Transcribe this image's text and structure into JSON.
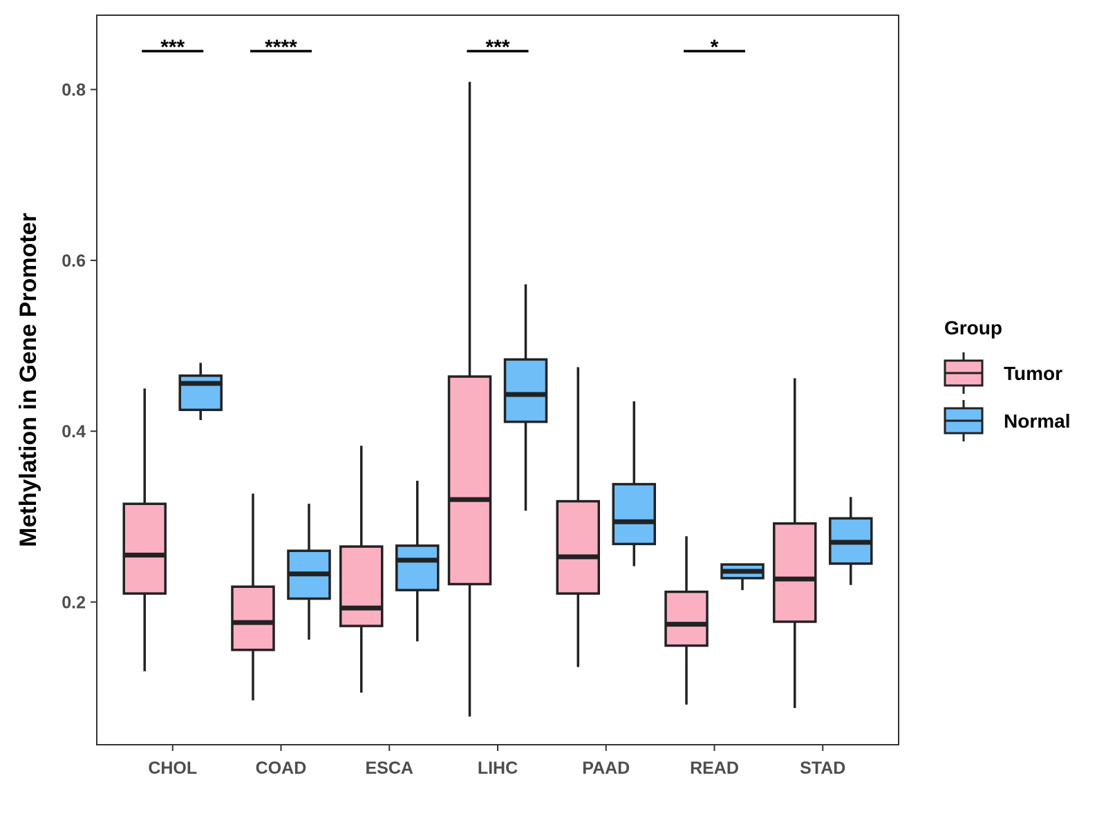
{
  "chart_data": {
    "type": "boxplot",
    "title": "",
    "xlabel": "",
    "ylabel": "Methylation in Gene Promoter",
    "ylim": [
      0.033,
      0.887
    ],
    "yticks": [
      0.2,
      0.4,
      0.6,
      0.8
    ],
    "ytick_labels": [
      "0.2",
      "0.4",
      "0.6",
      "0.8"
    ],
    "grid": false,
    "categories": [
      "CHOL",
      "COAD",
      "ESCA",
      "LIHC",
      "PAAD",
      "READ",
      "STAD"
    ],
    "legend": {
      "title": "Group",
      "position": "right",
      "entries": [
        "Tumor",
        "Normal"
      ]
    },
    "series": [
      {
        "name": "Tumor",
        "color": "#fbb0c2",
        "boxes": [
          {
            "whisker_low": 0.119,
            "q1": 0.21,
            "median": 0.255,
            "q3": 0.315,
            "whisker_high": 0.45
          },
          {
            "whisker_low": 0.085,
            "q1": 0.144,
            "median": 0.176,
            "q3": 0.218,
            "whisker_high": 0.327
          },
          {
            "whisker_low": 0.094,
            "q1": 0.172,
            "median": 0.193,
            "q3": 0.265,
            "whisker_high": 0.383
          },
          {
            "whisker_low": 0.066,
            "q1": 0.221,
            "median": 0.32,
            "q3": 0.464,
            "whisker_high": 0.809
          },
          {
            "whisker_low": 0.124,
            "q1": 0.21,
            "median": 0.253,
            "q3": 0.318,
            "whisker_high": 0.475
          },
          {
            "whisker_low": 0.08,
            "q1": 0.149,
            "median": 0.174,
            "q3": 0.212,
            "whisker_high": 0.277
          },
          {
            "whisker_low": 0.076,
            "q1": 0.177,
            "median": 0.227,
            "q3": 0.292,
            "whisker_high": 0.462
          }
        ]
      },
      {
        "name": "Normal",
        "color": "#6fbef8",
        "boxes": [
          {
            "whisker_low": 0.413,
            "q1": 0.425,
            "median": 0.456,
            "q3": 0.465,
            "whisker_high": 0.48
          },
          {
            "whisker_low": 0.156,
            "q1": 0.204,
            "median": 0.233,
            "q3": 0.26,
            "whisker_high": 0.315
          },
          {
            "whisker_low": 0.154,
            "q1": 0.214,
            "median": 0.249,
            "q3": 0.266,
            "whisker_high": 0.342
          },
          {
            "whisker_low": 0.307,
            "q1": 0.411,
            "median": 0.443,
            "q3": 0.484,
            "whisker_high": 0.572
          },
          {
            "whisker_low": 0.242,
            "q1": 0.268,
            "median": 0.294,
            "q3": 0.338,
            "whisker_high": 0.435
          },
          {
            "whisker_low": 0.214,
            "q1": 0.228,
            "median": 0.236,
            "q3": 0.244,
            "whisker_high": 0.245
          },
          {
            "whisker_low": 0.22,
            "q1": 0.245,
            "median": 0.27,
            "q3": 0.298,
            "whisker_high": 0.323
          }
        ]
      }
    ],
    "significance": [
      {
        "category": "CHOL",
        "label": "***"
      },
      {
        "category": "COAD",
        "label": "****"
      },
      {
        "category": "LIHC",
        "label": "***"
      },
      {
        "category": "READ",
        "label": "*"
      }
    ]
  }
}
